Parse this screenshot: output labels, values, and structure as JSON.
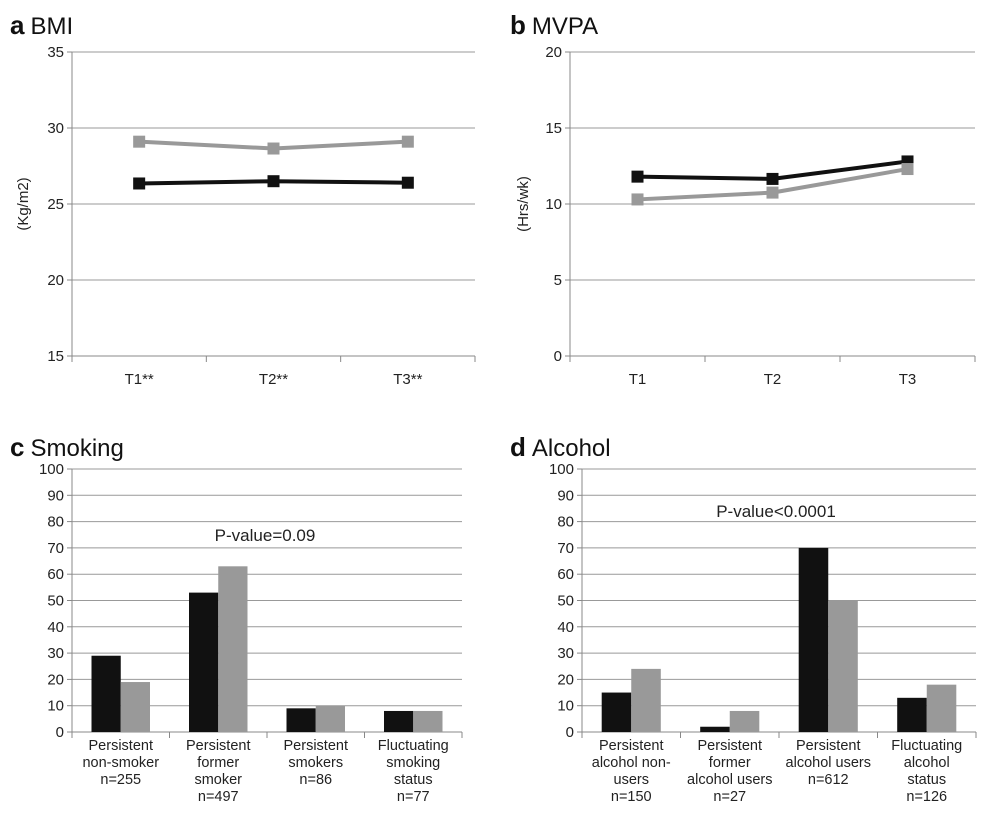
{
  "colors": {
    "series_black": "#111111",
    "series_gray": "#999999",
    "grid": "#999999",
    "axis": "#888888"
  },
  "chart_data": [
    {
      "panel": "a",
      "title": "BMI",
      "type": "line",
      "categories": [
        "T1**",
        "T2**",
        "T3**"
      ],
      "ylabel": "(Kg/m2)",
      "ylim": [
        15,
        35
      ],
      "yticks": [
        15,
        20,
        25,
        30,
        35
      ],
      "grid": true,
      "series": [
        {
          "color": "#999999",
          "values": [
            29.1,
            28.65,
            29.1
          ]
        },
        {
          "color": "#111111",
          "values": [
            26.35,
            26.5,
            26.4
          ]
        }
      ]
    },
    {
      "panel": "b",
      "title": "MVPA",
      "type": "line",
      "categories": [
        "T1",
        "T2",
        "T3"
      ],
      "ylabel": "(Hrs/wk)",
      "ylim": [
        0,
        20
      ],
      "yticks": [
        0,
        5,
        10,
        15,
        20
      ],
      "grid": true,
      "series": [
        {
          "color": "#111111",
          "values": [
            11.8,
            11.65,
            12.8
          ]
        },
        {
          "color": "#999999",
          "values": [
            10.3,
            10.75,
            12.3
          ]
        }
      ]
    },
    {
      "panel": "c",
      "title": "Smoking",
      "type": "bar",
      "annotation": "P-value=0.09",
      "categories": [
        [
          "Persistent",
          "non-smoker",
          "n=255"
        ],
        [
          "Persistent",
          "former",
          "smoker",
          "n=497"
        ],
        [
          "Persistent",
          "smokers",
          "n=86"
        ],
        [
          "Fluctuating",
          "smoking",
          "status",
          "n=77"
        ]
      ],
      "ylim": [
        0,
        100
      ],
      "yticks": [
        0,
        10,
        20,
        30,
        40,
        50,
        60,
        70,
        80,
        90,
        100
      ],
      "grid": true,
      "series": [
        {
          "color": "#111111",
          "values": [
            29,
            53,
            9,
            8
          ]
        },
        {
          "color": "#999999",
          "values": [
            19,
            63,
            10,
            8
          ]
        }
      ]
    },
    {
      "panel": "d",
      "title": "Alcohol",
      "type": "bar",
      "annotation": "P-value<0.0001",
      "categories": [
        [
          "Persistent",
          "alcohol non-",
          "users",
          "n=150"
        ],
        [
          "Persistent",
          "former",
          "alcohol users",
          "n=27"
        ],
        [
          "Persistent",
          "alcohol users",
          "n=612"
        ],
        [
          "Fluctuating",
          "alcohol",
          "status",
          "n=126"
        ]
      ],
      "ylim": [
        0,
        100
      ],
      "yticks": [
        0,
        10,
        20,
        30,
        40,
        50,
        60,
        70,
        80,
        90,
        100
      ],
      "grid": true,
      "series": [
        {
          "color": "#111111",
          "values": [
            15,
            2,
            70,
            13
          ]
        },
        {
          "color": "#999999",
          "values": [
            24,
            8,
            50,
            18
          ]
        }
      ]
    }
  ]
}
